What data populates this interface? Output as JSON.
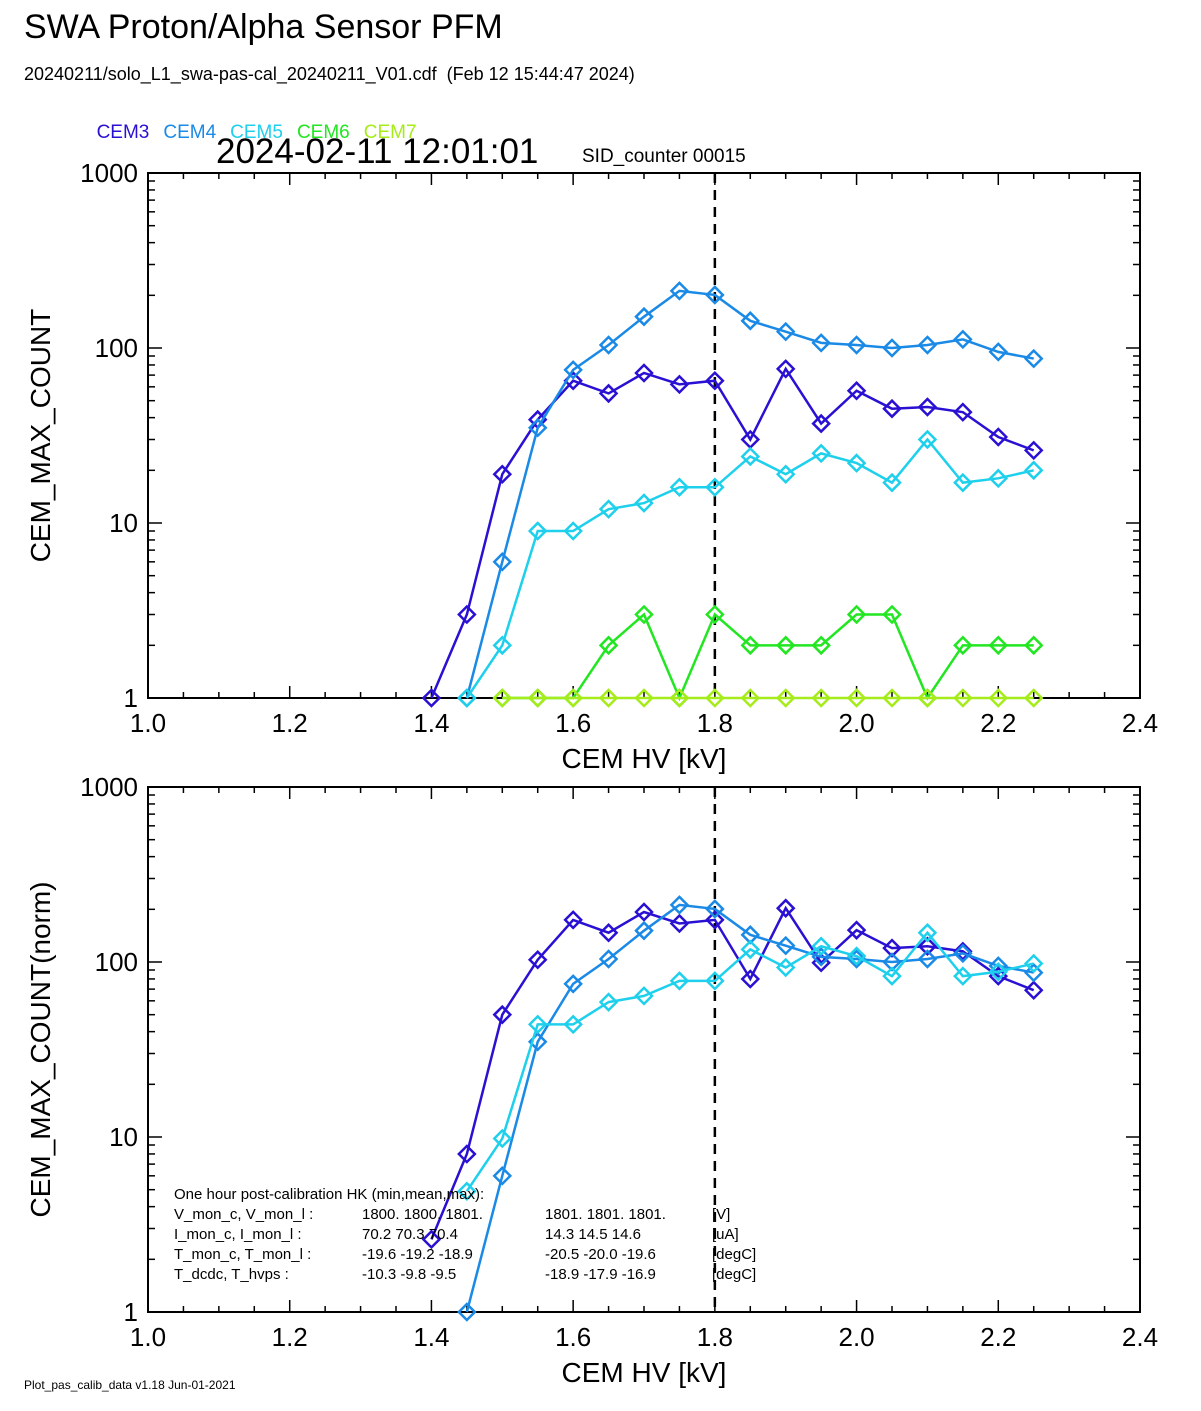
{
  "header": {
    "title": "SWA Proton/Alpha Sensor PFM",
    "file_line": "20240211/solo_L1_swa-pas-cal_20240211_V01.cdf  (Feb 12 15:44:47 2024)",
    "timestamp": "2024-02-11 12:01:01",
    "sid": "SID_counter 00015"
  },
  "legend": [
    {
      "label": "CEM3",
      "color": "#2a10d2"
    },
    {
      "label": "CEM4",
      "color": "#1a8ae6"
    },
    {
      "label": "CEM5",
      "color": "#1ed0ec"
    },
    {
      "label": "CEM6",
      "color": "#22e622"
    },
    {
      "label": "CEM7",
      "color": "#a6ec1a"
    }
  ],
  "footer": "Plot_pas_calib_data v1.18 Jun-01-2021",
  "hk": {
    "heading": "One hour post-calibration HK (min,mean,max):",
    "rows": [
      {
        "label": "V_mon_c, V_mon_l :",
        "a": "1800.  1800.  1801.",
        "b": "1801.  1801.  1801.",
        "unit": "[V]"
      },
      {
        "label": "I_mon_c,  I_mon_l :",
        "a": "70.2   70.3   70.4",
        "b": "14.3   14.5   14.6",
        "unit": "[uA]"
      },
      {
        "label": "T_mon_c, T_mon_l :",
        "a": "-19.6  -19.2  -18.9",
        "b": "-20.5  -20.0  -19.6",
        "unit": "[degC]"
      },
      {
        "label": "T_dcdc,    T_hvps :",
        "a": "-10.3   -9.8   -9.5",
        "b": "-18.9  -17.9  -16.9",
        "unit": "[degC]"
      }
    ]
  },
  "chart_data": [
    {
      "type": "line",
      "xlabel": "CEM HV [kV]",
      "ylabel": "CEM_MAX_COUNT",
      "xlim": [
        1.0,
        2.4
      ],
      "ylim": [
        1,
        1000
      ],
      "yscale": "log",
      "x_ticks": [
        "1.0",
        "1.2",
        "1.4",
        "1.6",
        "1.8",
        "2.0",
        "2.2",
        "2.4"
      ],
      "y_ticks": [
        "1",
        "10",
        "100",
        "1000"
      ],
      "vline": 1.8,
      "x": [
        1.4,
        1.45,
        1.5,
        1.55,
        1.6,
        1.65,
        1.7,
        1.75,
        1.8,
        1.85,
        1.9,
        1.95,
        2.0,
        2.05,
        2.1,
        2.15,
        2.2,
        2.25
      ],
      "series": [
        {
          "name": "CEM3",
          "color": "#2a10d2",
          "values": [
            1,
            3,
            19,
            39,
            65,
            55,
            72,
            62,
            65,
            30,
            76,
            37,
            57,
            45,
            46,
            43,
            31,
            26
          ]
        },
        {
          "name": "CEM4",
          "color": "#1a8ae6",
          "values": [
            null,
            1,
            6,
            35,
            75,
            104,
            151,
            212,
            201,
            143,
            124,
            107,
            104,
            100,
            104,
            112,
            95,
            87
          ]
        },
        {
          "name": "CEM5",
          "color": "#1ed0ec",
          "values": [
            null,
            1,
            2,
            9,
            9,
            12,
            13,
            16,
            16,
            24,
            19,
            25,
            22,
            17,
            30,
            17,
            18,
            20
          ]
        },
        {
          "name": "CEM6",
          "color": "#22e622",
          "values": [
            null,
            null,
            1,
            1,
            1,
            2,
            3,
            1,
            3,
            2,
            2,
            2,
            3,
            3,
            1,
            2,
            2,
            2
          ]
        },
        {
          "name": "CEM7",
          "color": "#a6ec1a",
          "values": [
            null,
            null,
            1,
            1,
            1,
            1,
            1,
            1,
            1,
            1,
            1,
            1,
            1,
            1,
            1,
            1,
            1,
            1
          ]
        }
      ]
    },
    {
      "type": "line",
      "xlabel": "CEM HV [kV]",
      "ylabel": "CEM_MAX_COUNT(norm)",
      "xlim": [
        1.0,
        2.4
      ],
      "ylim": [
        1,
        1000
      ],
      "yscale": "log",
      "x_ticks": [
        "1.0",
        "1.2",
        "1.4",
        "1.6",
        "1.8",
        "2.0",
        "2.2",
        "2.4"
      ],
      "y_ticks": [
        "1",
        "10",
        "100",
        "1000"
      ],
      "vline": 1.8,
      "x": [
        1.4,
        1.45,
        1.5,
        1.55,
        1.6,
        1.65,
        1.7,
        1.75,
        1.8,
        1.85,
        1.9,
        1.95,
        2.0,
        2.05,
        2.1,
        2.15,
        2.2,
        2.25
      ],
      "series": [
        {
          "name": "CEM3",
          "color": "#2a10d2",
          "values": [
            2.6,
            8,
            50,
            103,
            174,
            147,
            193,
            166,
            174,
            80,
            203,
            99,
            152,
            120,
            123,
            115,
            83,
            69
          ]
        },
        {
          "name": "CEM4",
          "color": "#1a8ae6",
          "values": [
            null,
            1,
            6,
            35,
            75,
            104,
            151,
            212,
            201,
            143,
            124,
            107,
            104,
            100,
            104,
            112,
            95,
            87
          ]
        },
        {
          "name": "CEM5",
          "color": "#1ed0ec",
          "values": [
            null,
            4.9,
            9.8,
            44,
            44,
            59,
            64,
            78,
            78,
            118,
            93,
            123,
            108,
            83,
            147,
            83,
            88,
            98
          ]
        }
      ]
    }
  ]
}
